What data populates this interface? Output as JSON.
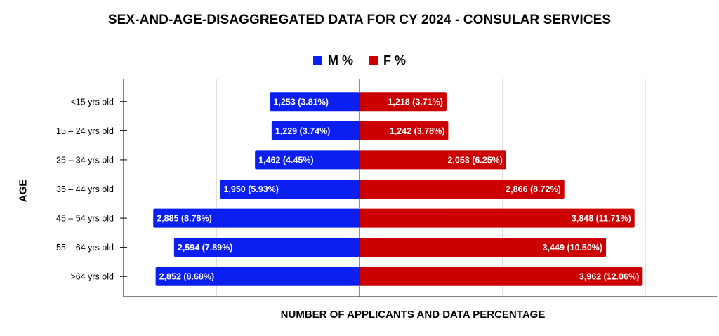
{
  "colors": {
    "male": "#0b1ff0",
    "female": "#cc0000",
    "grid": "#d9d9d9",
    "axis": "#000000"
  },
  "chart_data": {
    "type": "bar",
    "orientation": "horizontal-population-pyramid",
    "title": "SEX-AND-AGE-DISAGGREGATED DATA FOR CY 2024 - CONSULAR SERVICES",
    "xlabel": "NUMBER OF APPLICANTS AND DATA PERCENTAGE",
    "ylabel": "AGE",
    "legend_position": "top",
    "grid": true,
    "categories": [
      "<15 yrs old",
      "15 – 24 yrs old",
      "25 – 34 yrs old",
      "35 – 44 yrs old",
      "45 – 54 yrs old",
      "55 – 64 yrs old",
      ">64 yrs old"
    ],
    "series": [
      {
        "name": "M %",
        "values": [
          1253,
          1229,
          1462,
          1950,
          2885,
          2594,
          2852
        ],
        "labels": [
          "1,253  (3.81%)",
          "1,229  (3.74%)",
          "1,462  (4.45%)",
          "1,950  (5.93%)",
          "2,885  (8.78%)",
          "2,594  (7.89%)",
          "2,852  (8.68%)"
        ]
      },
      {
        "name": "F %",
        "values": [
          1218,
          1242,
          2053,
          2866,
          3848,
          3449,
          3962
        ],
        "labels": [
          "1,218  (3.71%)",
          "1,242  (3.78%)",
          "2,053  (6.25%)",
          "2,866  (8.72%)",
          "3,848  (11.71%)",
          "3,449  (10.50%)",
          "3,962  (12.06%)"
        ]
      }
    ],
    "xlim": [
      -3300,
      5000
    ]
  }
}
